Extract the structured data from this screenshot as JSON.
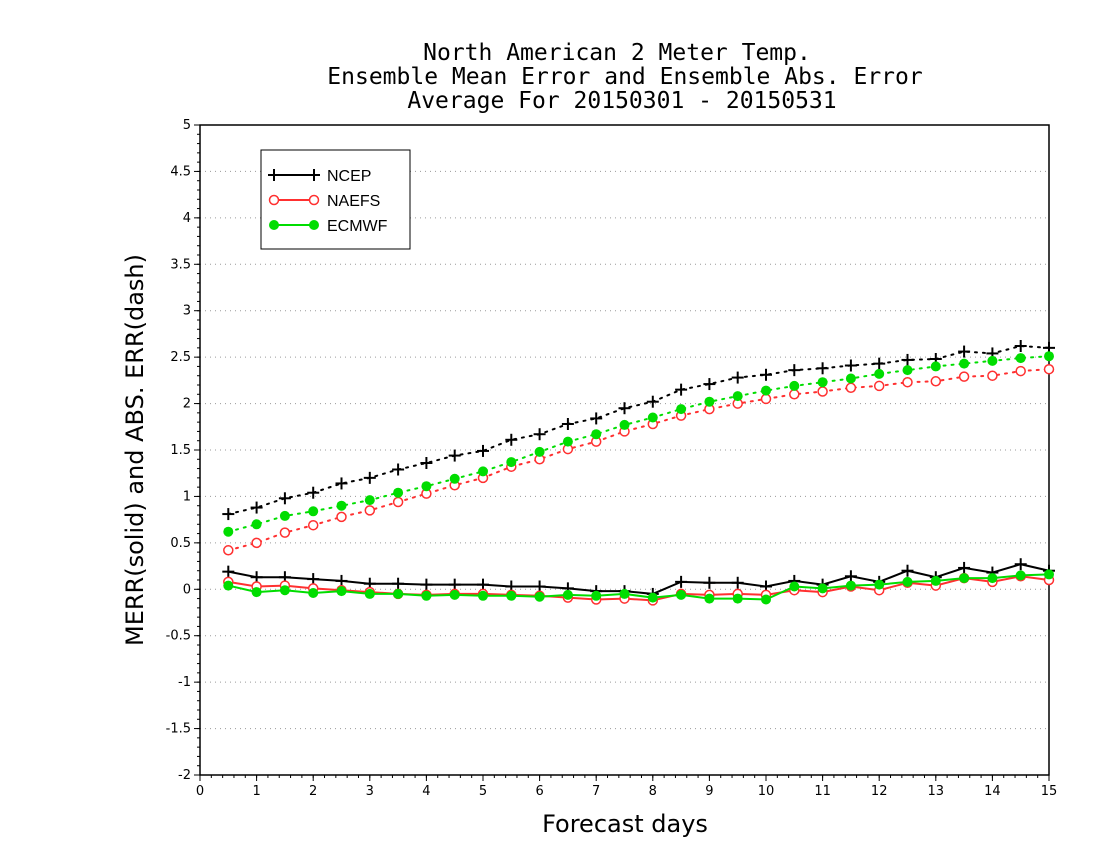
{
  "chart_data": {
    "type": "line",
    "title": [
      "North American 2 Meter Temp.",
      "Ensemble Mean Error and Ensemble Abs. Error",
      "Average For 20150301 - 20150531"
    ],
    "xlabel": "Forecast days",
    "ylabel": "MERR(solid) and ABS. ERR(dash)",
    "xlim": [
      0,
      15
    ],
    "ylim": [
      -2,
      5
    ],
    "x_ticks": [
      "0",
      "1",
      "2",
      "3",
      "4",
      "5",
      "6",
      "7",
      "8",
      "9",
      "10",
      "11",
      "12",
      "13",
      "14",
      "15"
    ],
    "y_ticks": [
      "-2",
      "-1.5",
      "-1",
      "-0.5",
      "0",
      "0.5",
      "1",
      "1.5",
      "2",
      "2.5",
      "3",
      "3.5",
      "4",
      "4.5",
      "5"
    ],
    "grid": "horizontal dotted",
    "legend_position": "top-left",
    "x": [
      0.5,
      1,
      1.5,
      2,
      2.5,
      3,
      3.5,
      4,
      4.5,
      5,
      5.5,
      6,
      6.5,
      7,
      7.5,
      8,
      8.5,
      9,
      9.5,
      10,
      10.5,
      11,
      11.5,
      12,
      12.5,
      13,
      13.5,
      14,
      14.5,
      15
    ],
    "series": [
      {
        "name": "NCEP",
        "color": "#000000",
        "marker": "plus",
        "merr": [
          0.19,
          0.13,
          0.13,
          0.11,
          0.09,
          0.06,
          0.06,
          0.05,
          0.05,
          0.05,
          0.03,
          0.03,
          0.01,
          -0.02,
          -0.02,
          -0.05,
          0.08,
          0.07,
          0.07,
          0.03,
          0.09,
          0.05,
          0.14,
          0.08,
          0.2,
          0.13,
          0.23,
          0.18,
          0.27,
          0.2
        ],
        "abs_err": [
          0.81,
          0.88,
          0.98,
          1.04,
          1.14,
          1.2,
          1.29,
          1.36,
          1.44,
          1.49,
          1.61,
          1.67,
          1.78,
          1.84,
          1.95,
          2.02,
          2.15,
          2.21,
          2.28,
          2.31,
          2.36,
          2.38,
          2.41,
          2.43,
          2.47,
          2.48,
          2.56,
          2.54,
          2.62,
          2.6
        ]
      },
      {
        "name": "NAEFS",
        "color": "#ff3030",
        "marker": "open-circle",
        "merr": [
          0.08,
          0.03,
          0.04,
          0.01,
          -0.01,
          -0.03,
          -0.05,
          -0.06,
          -0.05,
          -0.05,
          -0.06,
          -0.07,
          -0.09,
          -0.11,
          -0.1,
          -0.12,
          -0.05,
          -0.06,
          -0.05,
          -0.06,
          -0.01,
          -0.03,
          0.03,
          -0.01,
          0.07,
          0.04,
          0.12,
          0.08,
          0.14,
          0.1
        ],
        "abs_err": [
          0.42,
          0.5,
          0.61,
          0.69,
          0.78,
          0.85,
          0.94,
          1.03,
          1.12,
          1.2,
          1.32,
          1.4,
          1.51,
          1.59,
          1.7,
          1.78,
          1.87,
          1.94,
          2.0,
          2.05,
          2.1,
          2.13,
          2.17,
          2.19,
          2.23,
          2.24,
          2.29,
          2.3,
          2.35,
          2.37
        ]
      },
      {
        "name": "ECMWF",
        "color": "#00dd00",
        "marker": "filled-circle",
        "merr": [
          0.04,
          -0.03,
          -0.01,
          -0.04,
          -0.02,
          -0.05,
          -0.05,
          -0.07,
          -0.06,
          -0.07,
          -0.07,
          -0.08,
          -0.06,
          -0.07,
          -0.05,
          -0.09,
          -0.06,
          -0.1,
          -0.1,
          -0.11,
          0.03,
          0.01,
          0.04,
          0.05,
          0.08,
          0.09,
          0.12,
          0.12,
          0.15,
          0.16
        ],
        "abs_err": [
          0.62,
          0.7,
          0.79,
          0.84,
          0.9,
          0.96,
          1.04,
          1.11,
          1.19,
          1.27,
          1.37,
          1.48,
          1.59,
          1.67,
          1.77,
          1.85,
          1.94,
          2.02,
          2.08,
          2.14,
          2.19,
          2.23,
          2.27,
          2.32,
          2.36,
          2.4,
          2.43,
          2.46,
          2.49,
          2.51
        ]
      }
    ]
  }
}
